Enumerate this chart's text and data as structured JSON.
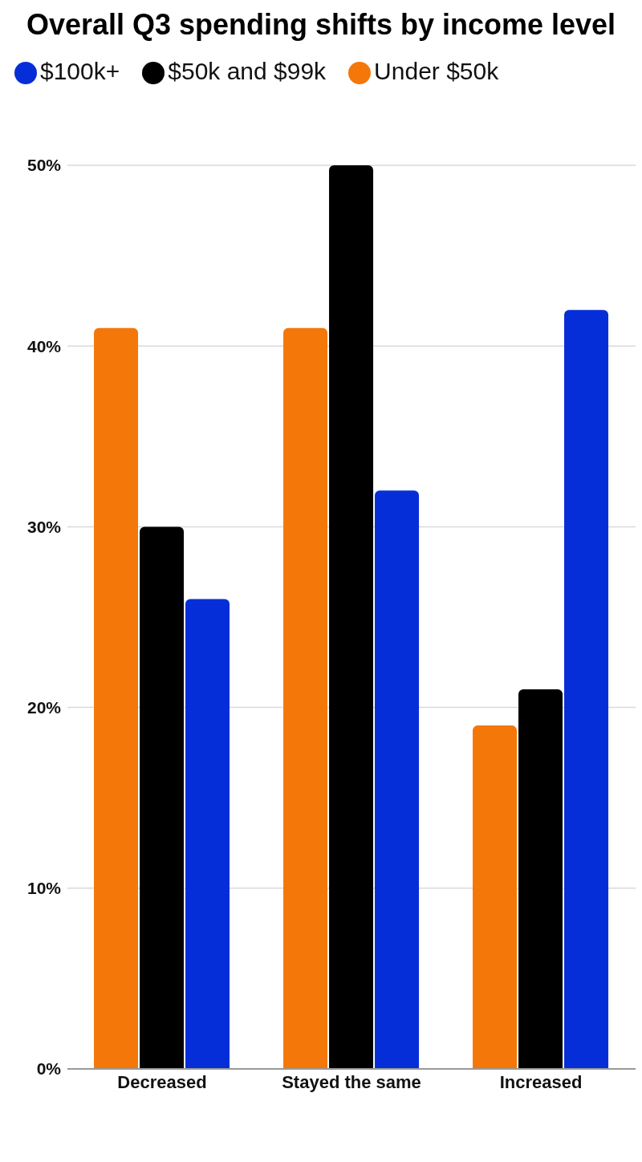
{
  "chart_data": {
    "type": "bar",
    "title": "Overall Q3 spending shifts by income level",
    "categories": [
      "Decreased",
      "Stayed the same",
      "Increased"
    ],
    "series": [
      {
        "name": "Under $50k",
        "color": "#f47709",
        "values": [
          41,
          41,
          19
        ]
      },
      {
        "name": "$50k and $99k",
        "color": "#000000",
        "values": [
          30,
          50,
          21
        ]
      },
      {
        "name": "$100k+",
        "color": "#062ed8",
        "values": [
          26,
          32,
          42
        ]
      }
    ],
    "ylim": [
      0,
      50
    ],
    "yticks": [
      {
        "value": 0,
        "label": "0%"
      },
      {
        "value": 10,
        "label": "10%"
      },
      {
        "value": 20,
        "label": "20%"
      },
      {
        "value": 30,
        "label": "30%"
      },
      {
        "value": 40,
        "label": "40%"
      },
      {
        "value": 50,
        "label": "50%"
      }
    ],
    "grid": "y",
    "legend": "top left"
  }
}
